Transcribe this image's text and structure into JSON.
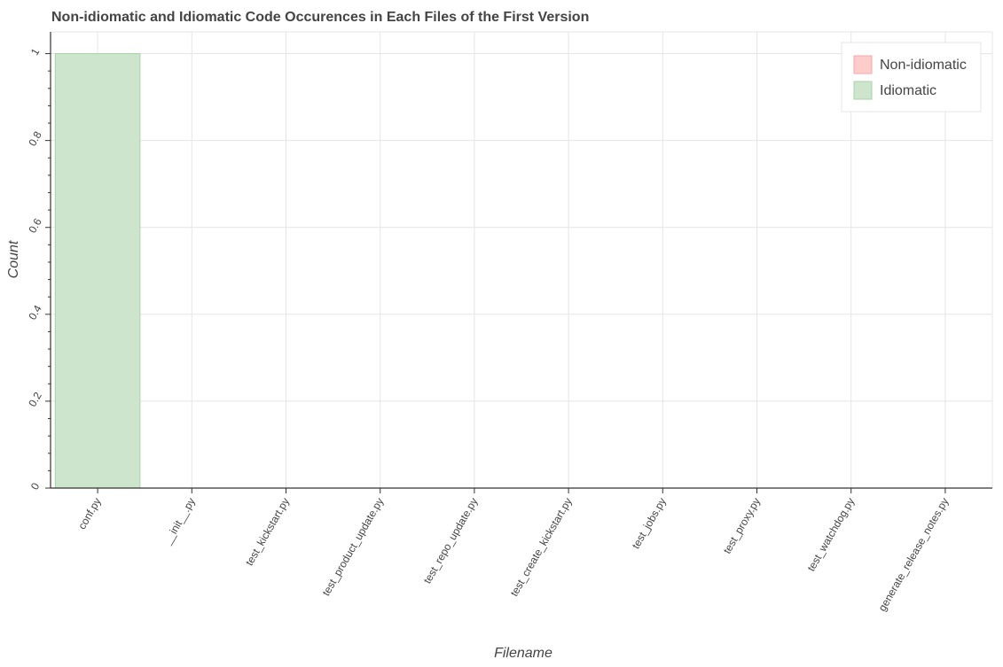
{
  "chart_data": {
    "type": "bar",
    "title": "Non-idiomatic and Idiomatic Code Occurences in Each Files of the First Version",
    "xlabel": "Filename",
    "ylabel": "Count",
    "categories": [
      "conf.py",
      "__init__.py",
      "test_kickstart.py",
      "test_product_update.py",
      "test_repo_update.py",
      "test_create_kickstart.py",
      "test_jobs.py",
      "test_proxy.py",
      "test_watchdog.py",
      "generate_release_notes.py"
    ],
    "series": [
      {
        "name": "Non-idiomatic",
        "color": "#ffcccc",
        "values": [
          0,
          0,
          0,
          0,
          0,
          0,
          0,
          0,
          0,
          0
        ]
      },
      {
        "name": "Idiomatic",
        "color": "#cce5cc",
        "values": [
          1,
          0,
          0,
          0,
          0,
          0,
          0,
          0,
          0,
          0
        ]
      }
    ],
    "yticks": [
      0,
      0.2,
      0.4,
      0.6,
      0.8,
      1
    ],
    "ytick_labels": [
      "0",
      "0.2",
      "0.4",
      "0.6",
      "0.8",
      "1"
    ],
    "ylim": [
      0,
      1.05
    ],
    "grid": true,
    "legend_position": "top-right"
  }
}
